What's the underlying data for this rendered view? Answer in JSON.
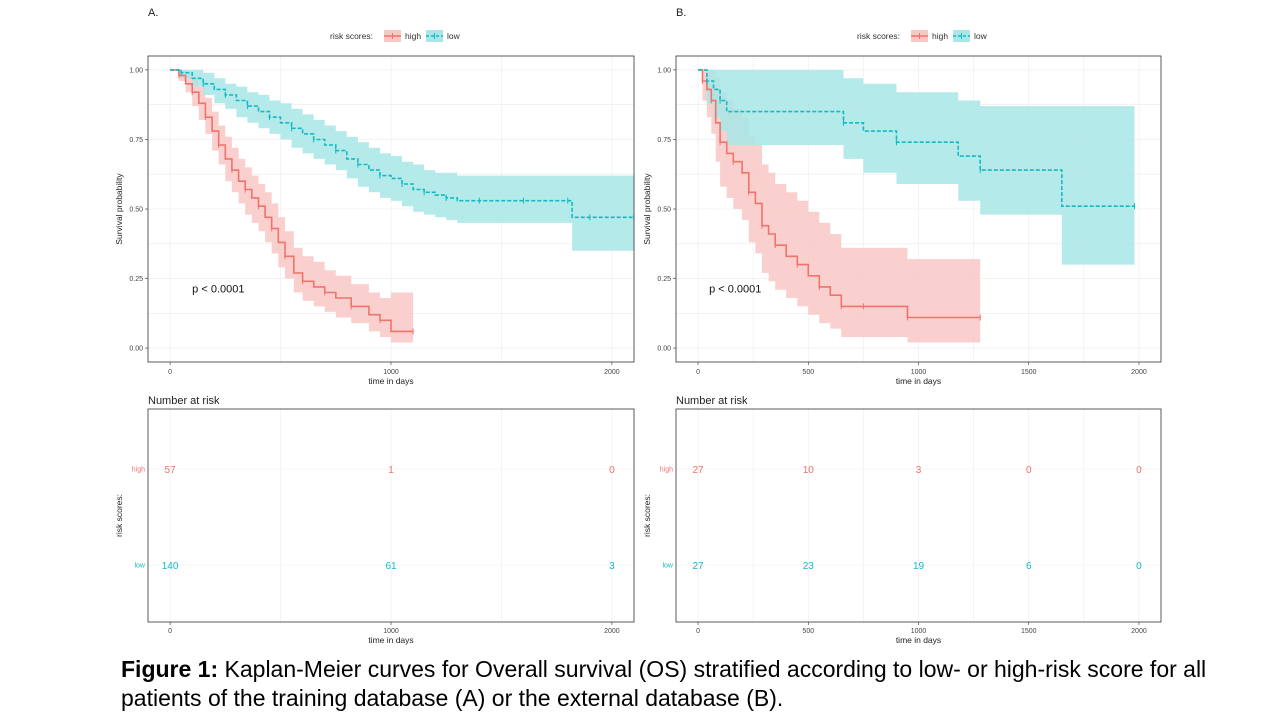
{
  "caption": {
    "label": "Figure 1:",
    "text": " Kaplan-Meier curves for Overall survival (OS) stratified according to low- or high-risk score for all patients of the training database (A) or the external database (B)."
  },
  "colors": {
    "high": "#f0736c",
    "low": "#14b9c2",
    "high_fill": "#f8c8c4",
    "low_fill": "#a8e6e8"
  },
  "chart_data": [
    {
      "panel": "A.",
      "type": "line",
      "subtype": "kaplan-meier",
      "legend": {
        "title": "risk scores:",
        "placement": "top",
        "entries": [
          "high",
          "low"
        ]
      },
      "xlabel": "time in days",
      "ylabel": "Survival probability",
      "xlim": [
        -100,
        2100
      ],
      "ylim": [
        -0.05,
        1.05
      ],
      "xticks": [
        0,
        1000,
        2000
      ],
      "yticks": [
        0.0,
        0.25,
        0.5,
        0.75,
        1.0
      ],
      "ytick_labels": [
        "0.00",
        "0.25",
        "0.50",
        "0.75",
        "1.00"
      ],
      "annotation": {
        "text": "p < 0.0001",
        "x": 100,
        "y": 0.2
      },
      "series": [
        {
          "name": "high",
          "x": [
            0,
            40,
            70,
            100,
            130,
            160,
            190,
            220,
            250,
            280,
            310,
            340,
            370,
            400,
            430,
            460,
            490,
            520,
            560,
            600,
            650,
            700,
            750,
            820,
            900,
            950,
            1000,
            1100
          ],
          "y": [
            1.0,
            0.98,
            0.95,
            0.92,
            0.88,
            0.83,
            0.78,
            0.73,
            0.68,
            0.64,
            0.6,
            0.57,
            0.54,
            0.51,
            0.47,
            0.43,
            0.38,
            0.33,
            0.27,
            0.24,
            0.22,
            0.2,
            0.18,
            0.15,
            0.12,
            0.1,
            0.06,
            0.06
          ],
          "lower": [
            1.0,
            0.96,
            0.92,
            0.87,
            0.82,
            0.77,
            0.71,
            0.66,
            0.6,
            0.56,
            0.52,
            0.48,
            0.45,
            0.42,
            0.38,
            0.34,
            0.29,
            0.25,
            0.2,
            0.17,
            0.15,
            0.13,
            0.11,
            0.09,
            0.06,
            0.04,
            0.02,
            0.02
          ],
          "upper": [
            1.0,
            1.0,
            0.99,
            0.97,
            0.94,
            0.9,
            0.85,
            0.8,
            0.76,
            0.72,
            0.68,
            0.65,
            0.62,
            0.59,
            0.56,
            0.52,
            0.47,
            0.42,
            0.36,
            0.33,
            0.31,
            0.28,
            0.26,
            0.23,
            0.2,
            0.18,
            0.2,
            0.2
          ]
        },
        {
          "name": "low",
          "x": [
            0,
            50,
            100,
            150,
            200,
            250,
            300,
            350,
            400,
            450,
            500,
            550,
            600,
            650,
            700,
            750,
            800,
            850,
            900,
            950,
            1000,
            1050,
            1100,
            1150,
            1200,
            1250,
            1300,
            1400,
            1500,
            1600,
            1700,
            1800,
            1820,
            1900,
            2000,
            2100
          ],
          "y": [
            1.0,
            0.99,
            0.97,
            0.95,
            0.93,
            0.91,
            0.89,
            0.87,
            0.85,
            0.83,
            0.81,
            0.79,
            0.77,
            0.75,
            0.73,
            0.71,
            0.68,
            0.66,
            0.64,
            0.62,
            0.61,
            0.59,
            0.57,
            0.56,
            0.55,
            0.54,
            0.53,
            0.53,
            0.53,
            0.53,
            0.53,
            0.53,
            0.47,
            0.47,
            0.47,
            0.47
          ],
          "lower": [
            1.0,
            0.97,
            0.94,
            0.91,
            0.88,
            0.86,
            0.83,
            0.81,
            0.79,
            0.77,
            0.75,
            0.72,
            0.7,
            0.68,
            0.66,
            0.64,
            0.61,
            0.58,
            0.56,
            0.54,
            0.53,
            0.51,
            0.49,
            0.48,
            0.47,
            0.46,
            0.45,
            0.45,
            0.45,
            0.45,
            0.45,
            0.45,
            0.35,
            0.35,
            0.35,
            0.35
          ],
          "upper": [
            1.0,
            1.0,
            1.0,
            0.99,
            0.97,
            0.95,
            0.94,
            0.92,
            0.91,
            0.89,
            0.88,
            0.86,
            0.84,
            0.82,
            0.8,
            0.78,
            0.76,
            0.74,
            0.72,
            0.7,
            0.69,
            0.67,
            0.66,
            0.64,
            0.63,
            0.63,
            0.62,
            0.62,
            0.62,
            0.62,
            0.62,
            0.62,
            0.62,
            0.62,
            0.62,
            0.62
          ]
        }
      ],
      "risk_table": {
        "title": "Number at risk",
        "ylabel": "risk scores:",
        "xlabel": "time in days",
        "times": [
          0,
          1000,
          2000
        ],
        "rows": [
          {
            "name": "high",
            "counts": [
              "57",
              "1",
              "0"
            ]
          },
          {
            "name": "low",
            "counts": [
              "140",
              "61",
              "3"
            ]
          }
        ]
      }
    },
    {
      "panel": "B.",
      "type": "line",
      "subtype": "kaplan-meier",
      "legend": {
        "title": "risk scores:",
        "placement": "top",
        "entries": [
          "high",
          "low"
        ]
      },
      "xlabel": "time in days",
      "ylabel": "Survival probability",
      "xlim": [
        -100,
        2100
      ],
      "ylim": [
        -0.05,
        1.05
      ],
      "xticks": [
        0,
        500,
        1000,
        1500,
        2000
      ],
      "yticks": [
        0.0,
        0.25,
        0.5,
        0.75,
        1.0
      ],
      "ytick_labels": [
        "0.00",
        "0.25",
        "0.50",
        "0.75",
        "1.00"
      ],
      "annotation": {
        "text": "p < 0.0001",
        "x": 50,
        "y": 0.2
      },
      "series": [
        {
          "name": "high",
          "x": [
            0,
            20,
            40,
            60,
            80,
            100,
            130,
            160,
            200,
            230,
            260,
            290,
            320,
            350,
            400,
            450,
            500,
            550,
            600,
            650,
            700,
            750,
            800,
            950,
            1100,
            1280
          ],
          "y": [
            1.0,
            0.96,
            0.93,
            0.89,
            0.81,
            0.74,
            0.7,
            0.67,
            0.63,
            0.56,
            0.52,
            0.44,
            0.41,
            0.37,
            0.33,
            0.3,
            0.26,
            0.22,
            0.19,
            0.15,
            0.15,
            0.15,
            0.15,
            0.11,
            0.11,
            0.11
          ],
          "lower": [
            1.0,
            0.89,
            0.83,
            0.77,
            0.67,
            0.58,
            0.54,
            0.5,
            0.46,
            0.38,
            0.34,
            0.27,
            0.24,
            0.21,
            0.18,
            0.15,
            0.12,
            0.09,
            0.07,
            0.04,
            0.04,
            0.04,
            0.04,
            0.02,
            0.02,
            0.02
          ],
          "upper": [
            1.0,
            1.0,
            1.0,
            1.0,
            0.97,
            0.92,
            0.89,
            0.86,
            0.83,
            0.76,
            0.73,
            0.66,
            0.63,
            0.59,
            0.56,
            0.53,
            0.49,
            0.45,
            0.41,
            0.36,
            0.36,
            0.36,
            0.36,
            0.32,
            0.32,
            0.32
          ]
        },
        {
          "name": "low",
          "x": [
            0,
            40,
            70,
            100,
            130,
            660,
            750,
            900,
            1180,
            1280,
            1650,
            1980
          ],
          "y": [
            1.0,
            0.96,
            0.93,
            0.89,
            0.85,
            0.81,
            0.78,
            0.74,
            0.69,
            0.64,
            0.51,
            0.51
          ],
          "lower": [
            1.0,
            0.88,
            0.83,
            0.78,
            0.73,
            0.68,
            0.63,
            0.59,
            0.53,
            0.48,
            0.3,
            0.3
          ],
          "upper": [
            1.0,
            1.0,
            1.0,
            1.0,
            1.0,
            0.97,
            0.95,
            0.92,
            0.89,
            0.87,
            0.87,
            0.87
          ]
        }
      ],
      "risk_table": {
        "title": "Number at risk",
        "ylabel": "risk scores:",
        "xlabel": "time in days",
        "times": [
          0,
          500,
          1000,
          1500,
          2000
        ],
        "rows": [
          {
            "name": "high",
            "counts": [
              "27",
              "10",
              "3",
              "0",
              "0"
            ]
          },
          {
            "name": "low",
            "counts": [
              "27",
              "23",
              "19",
              "6",
              "0"
            ]
          }
        ]
      }
    }
  ]
}
